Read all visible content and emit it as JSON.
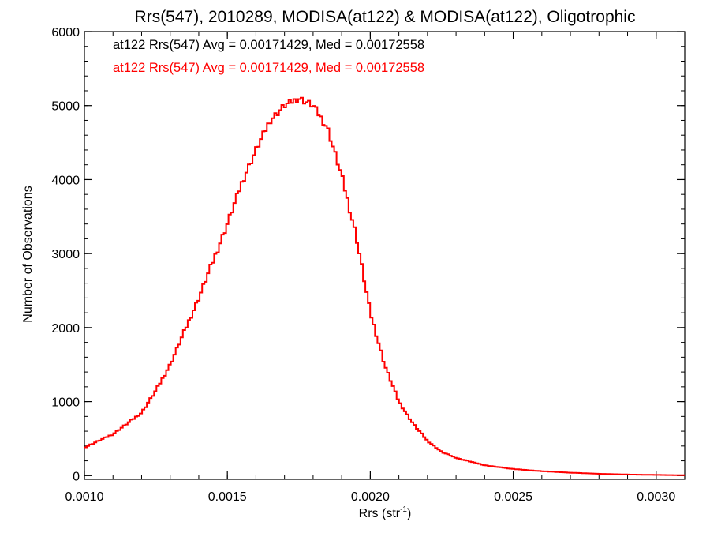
{
  "chart_data": {
    "type": "line",
    "title": "Rrs(547), 2010289, MODISA(at122) & MODISA(at122), Oligotrophic",
    "xlabel_main": "Rrs (str",
    "xlabel_sup": "-1",
    "xlabel_end": ")",
    "ylabel": "Number of Observations",
    "xlim": [
      0.001,
      0.0031
    ],
    "ylim": [
      -50,
      6000
    ],
    "x_ticks": [
      0.001,
      0.0015,
      0.002,
      0.0025,
      0.003
    ],
    "x_tick_labels": [
      "0.0010",
      "0.0015",
      "0.0020",
      "0.0025",
      "0.0030"
    ],
    "y_ticks": [
      0,
      1000,
      2000,
      3000,
      4000,
      5000,
      6000
    ],
    "y_tick_labels": [
      "0",
      "1000",
      "2000",
      "3000",
      "4000",
      "5000",
      "6000"
    ],
    "grid": false,
    "annotations": [
      {
        "text": "at122 Rrs(547) Avg = 0.00171429, Med = 0.00172558",
        "color": "#000000"
      },
      {
        "text": "at122 Rrs(547) Avg = 0.00171429, Med = 0.00172558",
        "color": "#ff0000"
      }
    ],
    "series": [
      {
        "color": "#ff0000",
        "style": "step",
        "x": [
          0.001,
          0.0011,
          0.0012,
          0.00125,
          0.0013,
          0.00135,
          0.0014,
          0.00145,
          0.0015,
          0.00155,
          0.0016,
          0.00165,
          0.0017,
          0.00175,
          0.0018,
          0.00185,
          0.0019,
          0.00195,
          0.002,
          0.00205,
          0.0021,
          0.00215,
          0.0022,
          0.00225,
          0.0023,
          0.0024,
          0.0025,
          0.0026,
          0.0027,
          0.0028,
          0.0029,
          0.003,
          0.0031
        ],
        "y": [
          380,
          560,
          850,
          1150,
          1500,
          1950,
          2400,
          2900,
          3400,
          3950,
          4400,
          4800,
          5000,
          5100,
          5000,
          4700,
          4050,
          3250,
          2200,
          1500,
          1000,
          700,
          470,
          320,
          240,
          140,
          90,
          60,
          40,
          25,
          15,
          10,
          5
        ]
      }
    ]
  }
}
